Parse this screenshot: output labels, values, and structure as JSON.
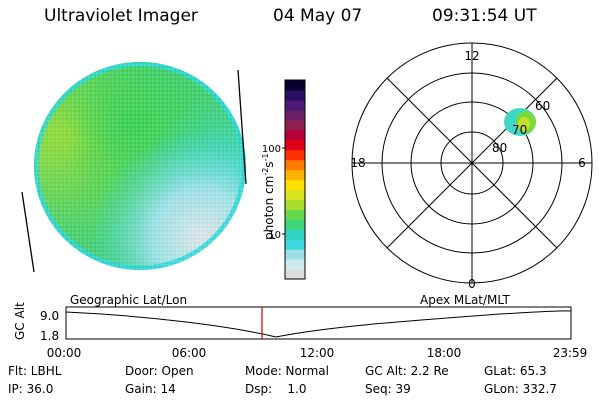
{
  "header": {
    "instrument": "Ultraviolet Imager",
    "date": "04 May 07",
    "time": "09:31:54 UT"
  },
  "colorbar": {
    "label": "photon cm",
    "label_exp1": "-2",
    "label_mid": "s",
    "label_exp2": "-1",
    "ticks": [
      "100",
      "10"
    ],
    "colors": [
      "#dcdcdc",
      "#cfe8ee",
      "#9fe0e6",
      "#40d8e0",
      "#30d2c0",
      "#3fd47a",
      "#66d84b",
      "#a8de30",
      "#d8e420",
      "#ffe000",
      "#ffb000",
      "#ff7a00",
      "#ff3000",
      "#e00018",
      "#b80038",
      "#902050",
      "#6a2065",
      "#4a1a75",
      "#2a1060",
      "#0a0030"
    ]
  },
  "polar_plot": {
    "mlt_labels": {
      "top": "12",
      "bottom": "0",
      "left": "18",
      "right": "6"
    },
    "lat_labels": [
      "60",
      "70",
      "80"
    ]
  },
  "timeline": {
    "left_title": "Geographic Lat/Lon",
    "right_title": "Apex MLat/MLT",
    "ylabel": "GC Alt",
    "yticks": [
      "9.0",
      "1.8"
    ],
    "xticks": [
      "00:00",
      "06:00",
      "12:00",
      "18:00",
      "23:59"
    ],
    "marker_color": "#cc0000"
  },
  "status": {
    "flt": "Flt: LBHL",
    "ip": "IP: 36.0",
    "door": "Door: Open",
    "gain": "Gain: 14",
    "mode": "Mode: Normal",
    "dsp": "Dsp:    1.0",
    "gcalt": "GC Alt: 2.2 Re",
    "seq": "Seq: 39",
    "glat": "GLat: 65.3",
    "glon": "GLon: 332.7"
  }
}
